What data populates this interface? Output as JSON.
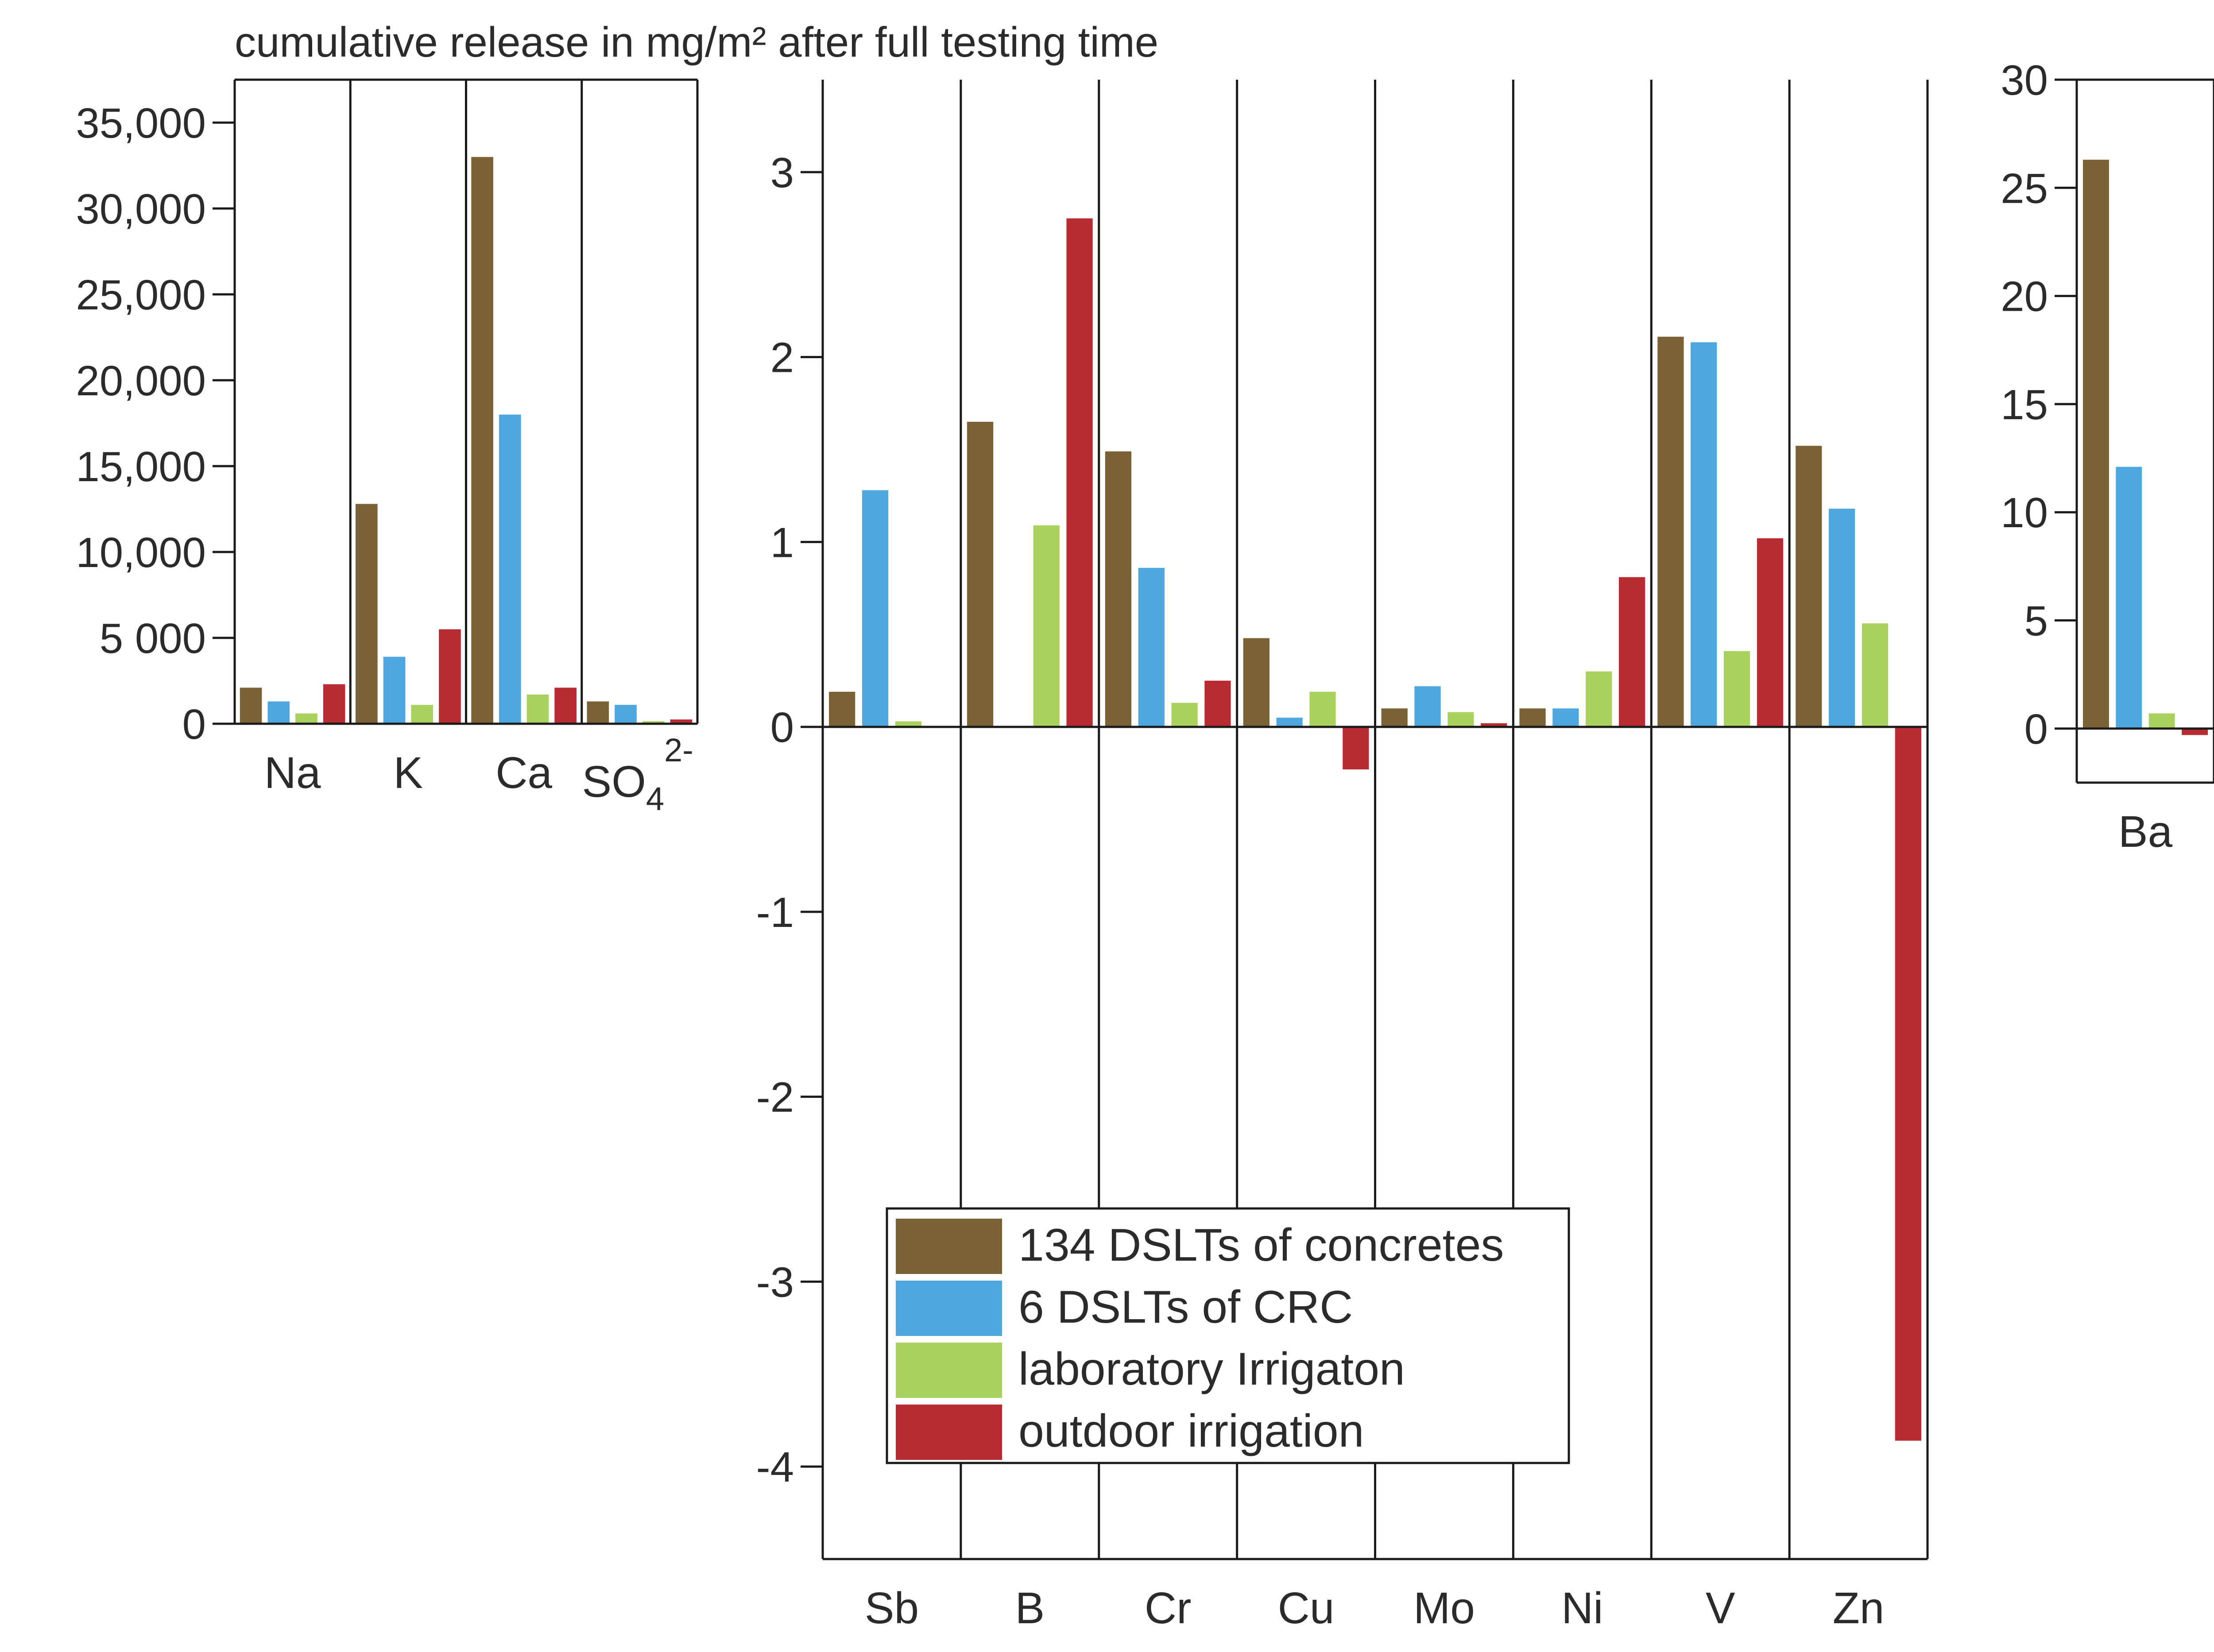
{
  "chart_data": {
    "type": "bar",
    "title": "cumulative release in mg/m² after full testing time",
    "colors": {
      "134 DSLTs of concretes": "#7a6236",
      "6 DSLTs of CRC": "#4fa7e0",
      "laboratory Irrigaton": "#a9d15e",
      "outdoor irrigation": "#b92b33"
    },
    "legend": {
      "position": "lower-center",
      "entries": [
        "134 DSLTs of concretes",
        "6 DSLTs of CRC",
        "laboratory Irrigaton",
        "outdoor irrigation"
      ]
    },
    "panels": [
      {
        "id": "major",
        "ylim": [
          0,
          37500
        ],
        "yticks": [
          0,
          5000,
          10000,
          15000,
          20000,
          25000,
          30000,
          35000
        ],
        "ytick_labels": [
          "0",
          "5 000",
          "10,000",
          "15,000",
          "20,000",
          "25,000",
          "30,000",
          "35,000"
        ],
        "categories": [
          "Na",
          "K",
          "Ca",
          "SO4 2-"
        ],
        "category_labels": [
          {
            "main": "Na"
          },
          {
            "main": "K"
          },
          {
            "main": "Ca"
          },
          {
            "main": "SO",
            "sub": "4",
            "sup": "2-"
          }
        ],
        "series": [
          {
            "name": "134 DSLTs of concretes",
            "values": [
              2100,
              12800,
              33000,
              1300
            ]
          },
          {
            "name": "6 DSLTs of CRC",
            "values": [
              1300,
              3900,
              18000,
              1100
            ]
          },
          {
            "name": "laboratory Irrigaton",
            "values": [
              600,
              1100,
              1700,
              150
            ]
          },
          {
            "name": "outdoor irrigation",
            "values": [
              2300,
              5500,
              2100,
              250
            ]
          }
        ]
      },
      {
        "id": "trace",
        "ylim": [
          -4.5,
          3.5
        ],
        "yticks": [
          -4,
          -3,
          -2,
          -1,
          0,
          1,
          2,
          3
        ],
        "ytick_labels": [
          "-4",
          "-3",
          "-2",
          "-1",
          "0",
          "1",
          "2",
          "3"
        ],
        "categories": [
          "Sb",
          "B",
          "Cr",
          "Cu",
          "Mo",
          "Ni",
          "V",
          "Zn"
        ],
        "category_labels": [
          {
            "main": "Sb"
          },
          {
            "main": "B"
          },
          {
            "main": "Cr"
          },
          {
            "main": "Cu"
          },
          {
            "main": "Mo"
          },
          {
            "main": "Ni"
          },
          {
            "main": "V"
          },
          {
            "main": "Zn"
          }
        ],
        "series": [
          {
            "name": "134 DSLTs of concretes",
            "values": [
              0.19,
              1.65,
              1.49,
              0.48,
              0.1,
              0.1,
              2.11,
              1.52
            ]
          },
          {
            "name": "6 DSLTs of CRC",
            "values": [
              1.28,
              0,
              0.86,
              0.05,
              0.22,
              0.1,
              2.08,
              1.18
            ]
          },
          {
            "name": "laboratory Irrigaton",
            "values": [
              0.03,
              1.09,
              0.13,
              0.19,
              0.08,
              0.3,
              0.41,
              0.56
            ]
          },
          {
            "name": "outdoor irrigation",
            "values": [
              0,
              2.75,
              0.25,
              -0.23,
              0.02,
              0.81,
              1.02,
              -3.86
            ]
          }
        ]
      },
      {
        "id": "barium",
        "ylim": [
          -2.5,
          30
        ],
        "yticks": [
          0,
          5,
          10,
          15,
          20,
          25,
          30
        ],
        "ytick_labels": [
          "0",
          "5",
          "10",
          "15",
          "20",
          "25",
          "30"
        ],
        "categories": [
          "Ba"
        ],
        "category_labels": [
          {
            "main": "Ba"
          }
        ],
        "series": [
          {
            "name": "134 DSLTs of concretes",
            "values": [
              26.3
            ]
          },
          {
            "name": "6 DSLTs of CRC",
            "values": [
              12.1
            ]
          },
          {
            "name": "laboratory Irrigaton",
            "values": [
              0.7
            ]
          },
          {
            "name": "outdoor irrigation",
            "values": [
              -0.3
            ]
          }
        ]
      }
    ]
  }
}
